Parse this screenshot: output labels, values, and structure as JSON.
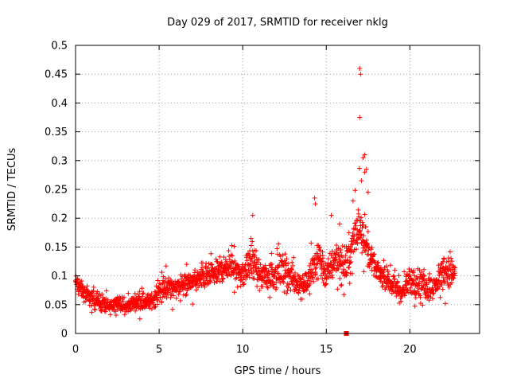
{
  "chart_data": {
    "type": "scatter",
    "title": "Day 029 of 2017, SRMTID for receiver nklg",
    "xlabel": "GPS time / hours",
    "ylabel": "SRMTID / TECUs",
    "xlim": [
      0,
      24.17
    ],
    "ylim": [
      0,
      0.5
    ],
    "x_ticks": [
      0,
      5,
      10,
      15,
      20
    ],
    "x_tick_labels": [
      "0",
      "5",
      "10",
      "15",
      "20"
    ],
    "y_ticks": [
      0,
      0.05,
      0.1,
      0.15,
      0.2,
      0.25,
      0.3,
      0.35,
      0.4,
      0.45,
      0.5
    ],
    "y_tick_labels": [
      "0",
      "0.05",
      "0.1",
      "0.15",
      "0.2",
      "0.25",
      "0.3",
      "0.35",
      "0.4",
      "0.45",
      "0.5"
    ],
    "grid": true,
    "marker": "+",
    "color": "#ff0000",
    "series": [
      {
        "name": "SRMTID",
        "envelope": {
          "x": [
            0.0,
            0.5,
            1.0,
            1.5,
            2.0,
            2.5,
            3.0,
            3.5,
            4.0,
            4.5,
            5.0,
            5.5,
            6.0,
            6.5,
            7.0,
            7.5,
            8.0,
            8.5,
            9.0,
            9.5,
            10.0,
            10.5,
            11.0,
            11.5,
            12.0,
            12.5,
            13.0,
            13.5,
            14.0,
            14.5,
            15.0,
            15.5,
            16.0,
            16.5,
            17.0,
            17.5,
            18.0,
            18.5,
            19.0,
            19.5,
            20.0,
            20.5,
            21.0,
            21.5,
            22.0,
            22.5
          ],
          "low": [
            0.06,
            0.04,
            0.03,
            0.02,
            0.02,
            0.03,
            0.02,
            0.03,
            0.02,
            0.03,
            0.03,
            0.04,
            0.04,
            0.05,
            0.05,
            0.06,
            0.06,
            0.06,
            0.07,
            0.07,
            0.06,
            0.06,
            0.06,
            0.05,
            0.05,
            0.05,
            0.05,
            0.04,
            0.05,
            0.05,
            0.05,
            0.06,
            0.05,
            0.06,
            0.09,
            0.09,
            0.08,
            0.06,
            0.05,
            0.04,
            0.04,
            0.04,
            0.04,
            0.04,
            0.05,
            0.05
          ],
          "high": [
            0.12,
            0.1,
            0.09,
            0.09,
            0.07,
            0.08,
            0.07,
            0.08,
            0.09,
            0.08,
            0.11,
            0.12,
            0.12,
            0.12,
            0.13,
            0.13,
            0.14,
            0.15,
            0.16,
            0.16,
            0.14,
            0.2,
            0.14,
            0.15,
            0.16,
            0.17,
            0.14,
            0.13,
            0.14,
            0.23,
            0.15,
            0.2,
            0.18,
            0.22,
            0.31,
            0.19,
            0.14,
            0.13,
            0.12,
            0.1,
            0.14,
            0.14,
            0.12,
            0.12,
            0.17,
            0.16
          ]
        },
        "outliers": [
          {
            "x": 17.0,
            "y": 0.46
          },
          {
            "x": 17.05,
            "y": 0.45
          },
          {
            "x": 17.0,
            "y": 0.375
          },
          {
            "x": 17.3,
            "y": 0.31
          },
          {
            "x": 17.2,
            "y": 0.305
          },
          {
            "x": 17.4,
            "y": 0.285
          },
          {
            "x": 17.3,
            "y": 0.28
          },
          {
            "x": 17.1,
            "y": 0.265
          },
          {
            "x": 17.5,
            "y": 0.245
          },
          {
            "x": 16.6,
            "y": 0.23
          },
          {
            "x": 14.3,
            "y": 0.235
          },
          {
            "x": 14.35,
            "y": 0.225
          },
          {
            "x": 10.6,
            "y": 0.205
          },
          {
            "x": 15.3,
            "y": 0.205
          },
          {
            "x": 15.8,
            "y": 0.19
          }
        ],
        "point_count": 1800
      },
      {
        "name": "marker",
        "marker": "square",
        "points": [
          {
            "x": 16.2,
            "y": 0.0
          }
        ]
      }
    ]
  }
}
